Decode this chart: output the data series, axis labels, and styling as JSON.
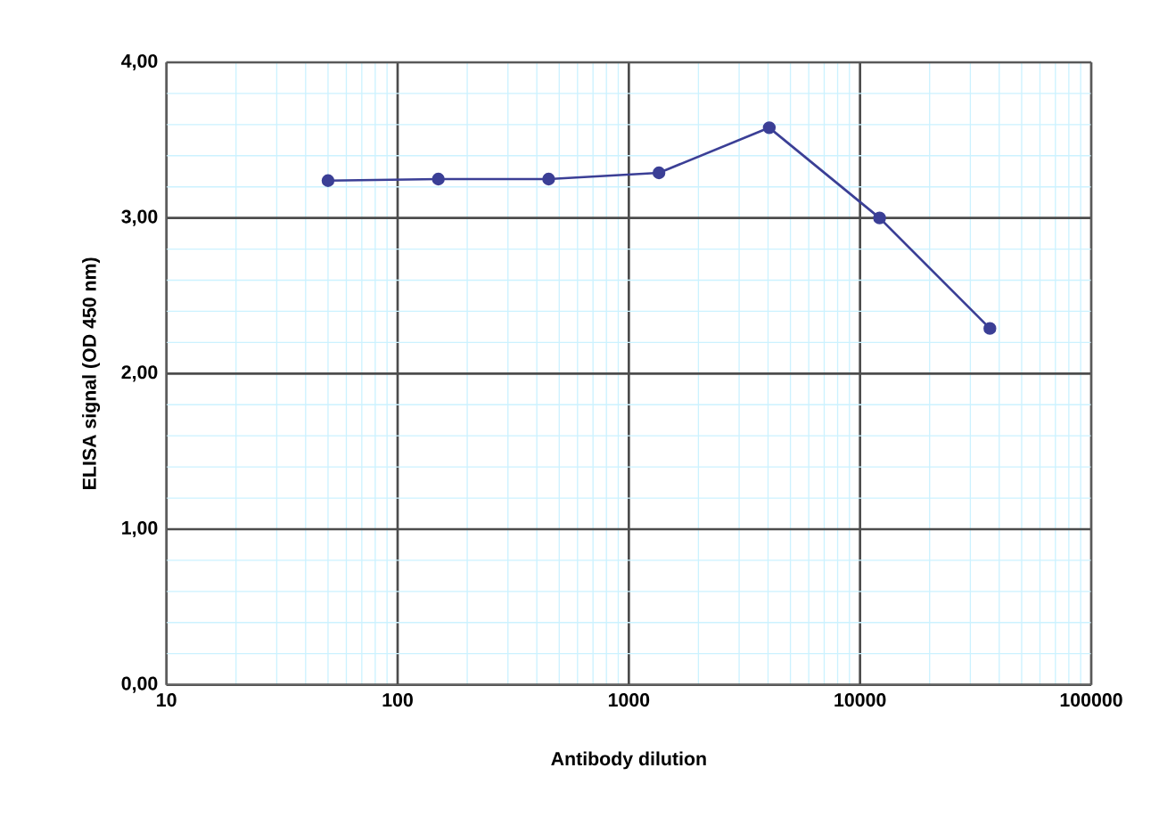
{
  "chart_data": {
    "type": "line",
    "xlabel": "Antibody dilution",
    "ylabel": "ELISA signal (OD 450 nm)",
    "x": [
      50,
      150,
      450,
      1350,
      4050,
      12150,
      36450
    ],
    "series": [
      {
        "color": "#3b3f96",
        "values": [
          3.24,
          3.25,
          3.25,
          3.29,
          3.58,
          3.0,
          2.29
        ]
      }
    ],
    "log": "x",
    "xlim": [
      10,
      100000
    ],
    "ylim": [
      0,
      4
    ],
    "xticks": [
      10,
      100,
      1000,
      10000,
      100000
    ],
    "yticks": [
      {
        "value": 0,
        "label": "0,00"
      },
      {
        "value": 1,
        "label": "1,00"
      },
      {
        "value": 2,
        "label": "2,00"
      },
      {
        "value": 3,
        "label": "3,00"
      },
      {
        "value": 4,
        "label": "4,00"
      }
    ],
    "grid": true,
    "marker": "circle",
    "line_style": "solid"
  }
}
